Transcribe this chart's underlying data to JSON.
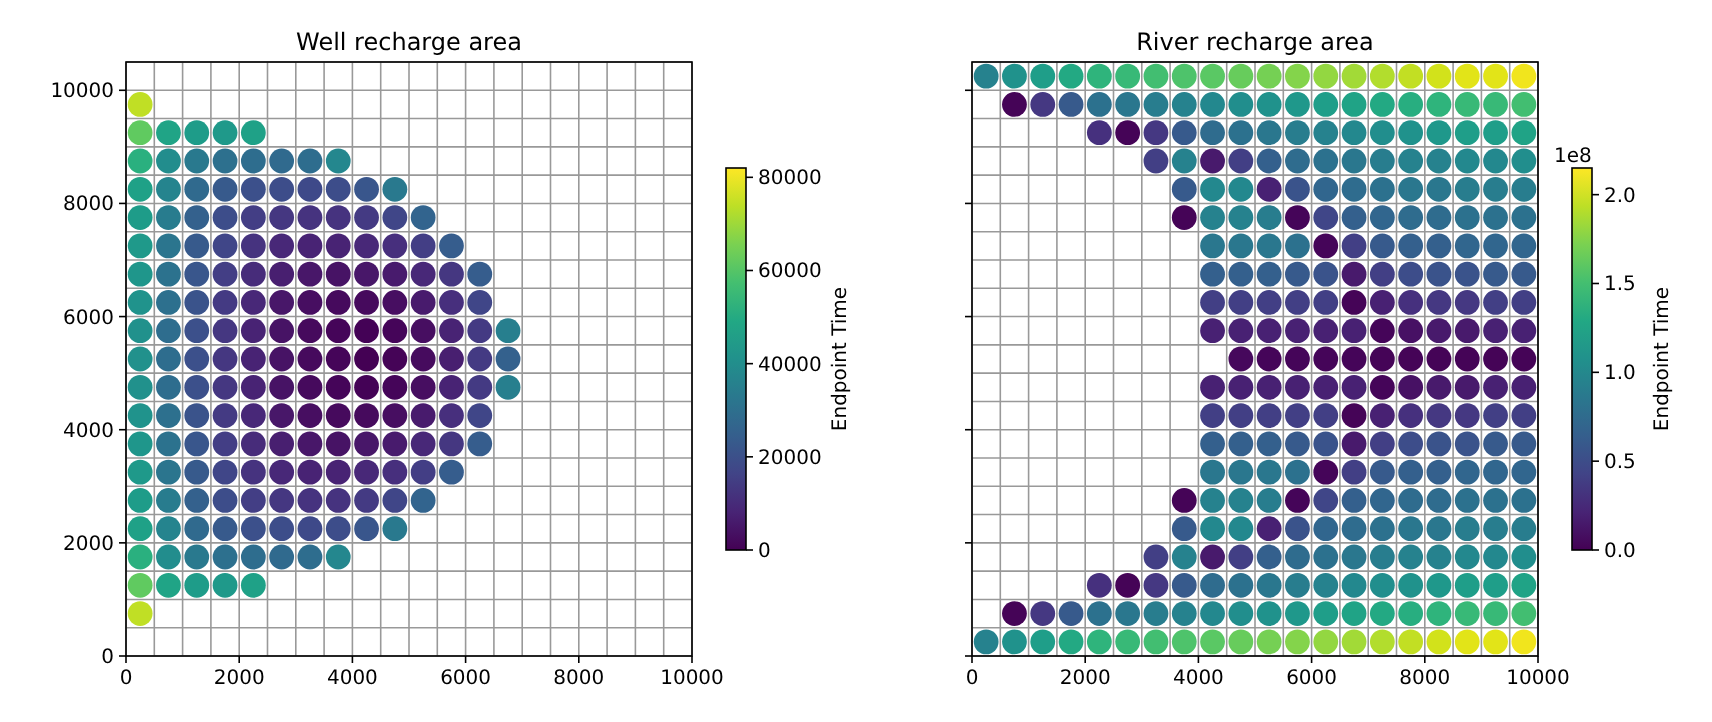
{
  "chart_data": [
    {
      "type": "scatter",
      "title": "Well recharge area",
      "clabel": "Endpoint Time",
      "marker": "circle",
      "grid": true,
      "xlim": [
        0,
        10000
      ],
      "ylim": [
        0,
        10500
      ],
      "xticks": [
        0,
        {
          "value": 500,
          "label": null
        },
        {
          "value": 1000,
          "label": null
        },
        {
          "value": 1500,
          "label": null
        },
        2000,
        {
          "value": 2500,
          "label": null
        },
        {
          "value": 3000,
          "label": null
        },
        {
          "value": 3500,
          "label": null
        },
        4000,
        {
          "value": 4500,
          "label": null
        },
        {
          "value": 5000,
          "label": null
        },
        {
          "value": 5500,
          "label": null
        },
        6000,
        {
          "value": 6500,
          "label": null
        },
        {
          "value": 7000,
          "label": null
        },
        {
          "value": 7500,
          "label": null
        },
        8000,
        {
          "value": 8500,
          "label": null
        },
        {
          "value": 9000,
          "label": null
        },
        {
          "value": 9500,
          "label": null
        },
        10000
      ],
      "yticks": [
        0,
        {
          "value": 500,
          "label": null
        },
        {
          "value": 1000,
          "label": null
        },
        {
          "value": 1500,
          "label": null
        },
        2000,
        {
          "value": 2500,
          "label": null
        },
        {
          "value": 3000,
          "label": null
        },
        {
          "value": 3500,
          "label": null
        },
        4000,
        {
          "value": 4500,
          "label": null
        },
        {
          "value": 5000,
          "label": null
        },
        {
          "value": 5500,
          "label": null
        },
        6000,
        {
          "value": 6500,
          "label": null
        },
        {
          "value": 7000,
          "label": null
        },
        {
          "value": 7500,
          "label": null
        },
        8000,
        {
          "value": 8500,
          "label": null
        },
        {
          "value": 9000,
          "label": null
        },
        {
          "value": 9500,
          "label": null
        },
        10000,
        {
          "value": 10500,
          "label": null
        }
      ],
      "clim": [
        0,
        82000
      ],
      "cticks": [
        0,
        20000,
        40000,
        60000,
        80000
      ],
      "series": [
        {
          "x": [
            250,
            250,
            750,
            1250,
            1750,
            2250,
            250,
            750,
            1250,
            1750,
            2250,
            2750,
            3250,
            3750,
            250,
            750,
            1250,
            1750,
            2250,
            2750,
            3250,
            3750,
            4250,
            4750,
            250,
            750,
            1250,
            1750,
            2250,
            2750,
            3250,
            3750,
            4250,
            4750,
            5250,
            250,
            750,
            1250,
            1750,
            2250,
            2750,
            3250,
            3750,
            4250,
            4750,
            5250,
            5750,
            250,
            750,
            1250,
            1750,
            2250,
            2750,
            3250,
            3750,
            4250,
            4750,
            5250,
            5750,
            6250,
            250,
            750,
            1250,
            1750,
            2250,
            2750,
            3250,
            3750,
            4250,
            4750,
            5250,
            5750,
            6250,
            250,
            750,
            1250,
            1750,
            2250,
            2750,
            3250,
            3750,
            4250,
            4750,
            5250,
            5750,
            6250,
            6750,
            250,
            750,
            1250,
            1750,
            2250,
            2750,
            3250,
            3750,
            4250,
            4750,
            5250,
            5750,
            6250,
            6750,
            250,
            750,
            1250,
            1750,
            2250,
            2750,
            3250,
            3750,
            4250,
            4750,
            5250,
            5750,
            6250,
            6750,
            250,
            750,
            1250,
            1750,
            2250,
            2750,
            3250,
            3750,
            4250,
            4750,
            5250,
            5750,
            6250,
            250,
            750,
            1250,
            1750,
            2250,
            2750,
            3250,
            3750,
            4250,
            4750,
            5250,
            5750,
            6250,
            250,
            750,
            1250,
            1750,
            2250,
            2750,
            3250,
            3750,
            4250,
            4750,
            5250,
            5750,
            250,
            750,
            1250,
            1750,
            2250,
            2750,
            3250,
            3750,
            4250,
            4750,
            5250,
            250,
            750,
            1250,
            1750,
            2250,
            2750,
            3250,
            3750,
            4250,
            4750,
            250,
            750,
            1250,
            1750,
            2250,
            2750,
            3250,
            3750,
            250,
            750,
            1250,
            1750,
            2250,
            250
          ],
          "values": [
            9750,
            9250,
            9250,
            9250,
            9250,
            9250,
            8750,
            8750,
            8750,
            8750,
            8750,
            8750,
            8750,
            8750,
            8250,
            8250,
            8250,
            8250,
            8250,
            8250,
            8250,
            8250,
            8250,
            8250,
            7750,
            7750,
            7750,
            7750,
            7750,
            7750,
            7750,
            7750,
            7750,
            7750,
            7750,
            7250,
            7250,
            7250,
            7250,
            7250,
            7250,
            7250,
            7250,
            7250,
            7250,
            7250,
            7250,
            6750,
            6750,
            6750,
            6750,
            6750,
            6750,
            6750,
            6750,
            6750,
            6750,
            6750,
            6750,
            6750,
            6250,
            6250,
            6250,
            6250,
            6250,
            6250,
            6250,
            6250,
            6250,
            6250,
            6250,
            6250,
            6250,
            5750,
            5750,
            5750,
            5750,
            5750,
            5750,
            5750,
            5750,
            5750,
            5750,
            5750,
            5750,
            5750,
            5750,
            5250,
            5250,
            5250,
            5250,
            5250,
            5250,
            5250,
            5250,
            5250,
            5250,
            5250,
            5250,
            5250,
            5250,
            4750,
            4750,
            4750,
            4750,
            4750,
            4750,
            4750,
            4750,
            4750,
            4750,
            4750,
            4750,
            4750,
            4750,
            4250,
            4250,
            4250,
            4250,
            4250,
            4250,
            4250,
            4250,
            4250,
            4250,
            4250,
            4250,
            4250,
            3750,
            3750,
            3750,
            3750,
            3750,
            3750,
            3750,
            3750,
            3750,
            3750,
            3750,
            3750,
            3750,
            3250,
            3250,
            3250,
            3250,
            3250,
            3250,
            3250,
            3250,
            3250,
            3250,
            3250,
            3250,
            2750,
            2750,
            2750,
            2750,
            2750,
            2750,
            2750,
            2750,
            2750,
            2750,
            2750,
            2250,
            2250,
            2250,
            2250,
            2250,
            2250,
            2250,
            2250,
            2250,
            2250,
            1750,
            1750,
            1750,
            1750,
            1750,
            1750,
            1750,
            1750,
            1250,
            1250,
            1250,
            1250,
            1250,
            750
          ],
          "cvalues": [
            74000,
            62000,
            48000,
            45000,
            44000,
            47000,
            52000,
            40000,
            33000,
            30000,
            29000,
            28000,
            29000,
            38000,
            47000,
            37000,
            28000,
            23000,
            20000,
            19000,
            18000,
            19000,
            22000,
            33000,
            45000,
            34000,
            25000,
            19000,
            15000,
            13000,
            12000,
            12000,
            14000,
            17000,
            26000,
            44000,
            32000,
            23000,
            17000,
            12000,
            9000,
            8000,
            8000,
            9000,
            11000,
            15000,
            24000,
            43000,
            31000,
            22000,
            15000,
            10000,
            7000,
            5000,
            4000,
            5000,
            6000,
            9000,
            13000,
            24000,
            42000,
            30000,
            21000,
            14000,
            9000,
            5000,
            3000,
            2000,
            2000,
            3000,
            6000,
            11000,
            17000,
            41000,
            29000,
            20000,
            13000,
            8000,
            4000,
            2000,
            1000,
            500,
            1000,
            3000,
            8000,
            14000,
            35000,
            41000,
            29000,
            20000,
            13000,
            8000,
            4000,
            2000,
            1000,
            300,
            800,
            2500,
            7000,
            14000,
            25000,
            41000,
            29000,
            20000,
            13000,
            8000,
            4000,
            2000,
            1000,
            500,
            1000,
            3000,
            8000,
            14000,
            35000,
            42000,
            30000,
            21000,
            14000,
            9000,
            5000,
            3000,
            2000,
            2000,
            3000,
            6000,
            11000,
            17000,
            43000,
            31000,
            22000,
            15000,
            10000,
            7000,
            5000,
            4000,
            5000,
            6000,
            9000,
            13000,
            24000,
            44000,
            32000,
            23000,
            17000,
            12000,
            9000,
            8000,
            8000,
            9000,
            11000,
            15000,
            24000,
            45000,
            34000,
            25000,
            19000,
            15000,
            13000,
            12000,
            12000,
            14000,
            17000,
            26000,
            47000,
            37000,
            28000,
            23000,
            20000,
            19000,
            18000,
            19000,
            22000,
            33000,
            52000,
            40000,
            33000,
            30000,
            29000,
            28000,
            29000,
            38000,
            62000,
            48000,
            45000,
            44000,
            47000,
            74000
          ]
        }
      ]
    },
    {
      "type": "scatter",
      "title": "River recharge area",
      "clabel": "Endpoint Time",
      "marker": "circle",
      "grid": true,
      "tick_labels": "x",
      "annotations": [
        "1e8"
      ],
      "xlim": [
        0,
        10000
      ],
      "ylim": [
        0,
        10500
      ],
      "xticks": [
        0,
        {
          "value": 500,
          "label": null
        },
        {
          "value": 1000,
          "label": null
        },
        {
          "value": 1500,
          "label": null
        },
        2000,
        {
          "value": 2500,
          "label": null
        },
        {
          "value": 3000,
          "label": null
        },
        {
          "value": 3500,
          "label": null
        },
        4000,
        {
          "value": 4500,
          "label": null
        },
        {
          "value": 5000,
          "label": null
        },
        {
          "value": 5500,
          "label": null
        },
        6000,
        {
          "value": 6500,
          "label": null
        },
        {
          "value": 7000,
          "label": null
        },
        {
          "value": 7500,
          "label": null
        },
        8000,
        {
          "value": 8500,
          "label": null
        },
        {
          "value": 9000,
          "label": null
        },
        {
          "value": 9500,
          "label": null
        },
        10000
      ],
      "yticks": [
        0,
        {
          "value": 500,
          "label": null
        },
        {
          "value": 1000,
          "label": null
        },
        {
          "value": 1500,
          "label": null
        },
        2000,
        {
          "value": 2500,
          "label": null
        },
        {
          "value": 3000,
          "label": null
        },
        {
          "value": 3500,
          "label": null
        },
        4000,
        {
          "value": 4500,
          "label": null
        },
        {
          "value": 5000,
          "label": null
        },
        {
          "value": 5500,
          "label": null
        },
        6000,
        {
          "value": 6500,
          "label": null
        },
        {
          "value": 7000,
          "label": null
        },
        {
          "value": 7500,
          "label": null
        },
        8000,
        {
          "value": 8500,
          "label": null
        },
        {
          "value": 9000,
          "label": null
        },
        {
          "value": 9500,
          "label": null
        },
        10000,
        {
          "value": 10500,
          "label": null
        }
      ],
      "clim": [
        0,
        2.15
      ],
      "cticks": [
        {
          "value": 0,
          "label": "0.0"
        },
        0.5,
        {
          "value": 1,
          "label": "1.0"
        },
        1.5,
        {
          "value": 2,
          "label": "2.0"
        }
      ],
      "series": [
        {
          "x": [
            250,
            750,
            1250,
            1750,
            2250,
            2750,
            3250,
            3750,
            4250,
            4750,
            5250,
            5750,
            6250,
            6750,
            7250,
            7750,
            8250,
            8750,
            9250,
            9750,
            750,
            1250,
            1750,
            2250,
            2750,
            3250,
            3750,
            4250,
            4750,
            5250,
            5750,
            6250,
            6750,
            7250,
            7750,
            8250,
            8750,
            9250,
            9750,
            2250,
            2750,
            3250,
            3750,
            4250,
            4750,
            5250,
            5750,
            6250,
            6750,
            7250,
            7750,
            8250,
            8750,
            9250,
            9750,
            3250,
            3750,
            4250,
            4750,
            5250,
            5750,
            6250,
            6750,
            7250,
            7750,
            8250,
            8750,
            9250,
            9750,
            3750,
            4250,
            4750,
            5250,
            5750,
            6250,
            6750,
            7250,
            7750,
            8250,
            8750,
            9250,
            9750,
            3750,
            4250,
            4750,
            5250,
            5750,
            6250,
            6750,
            7250,
            7750,
            8250,
            8750,
            9250,
            9750,
            4250,
            4750,
            5250,
            5750,
            6250,
            6750,
            7250,
            7750,
            8250,
            8750,
            9250,
            9750,
            4250,
            4750,
            5250,
            5750,
            6250,
            6750,
            7250,
            7750,
            8250,
            8750,
            9250,
            9750,
            4250,
            4750,
            5250,
            5750,
            6250,
            6750,
            7250,
            7750,
            8250,
            8750,
            9250,
            9750,
            4250,
            4750,
            5250,
            5750,
            6250,
            6750,
            7250,
            7750,
            8250,
            8750,
            9250,
            9750,
            4750,
            5250,
            5750,
            6250,
            6750,
            7250,
            7750,
            8250,
            8750,
            9250,
            9750,
            4250,
            4750,
            5250,
            5750,
            6250,
            6750,
            7250,
            7750,
            8250,
            8750,
            9250,
            9750,
            4250,
            4750,
            5250,
            5750,
            6250,
            6750,
            7250,
            7750,
            8250,
            8750,
            9250,
            9750,
            4250,
            4750,
            5250,
            5750,
            6250,
            6750,
            7250,
            7750,
            8250,
            8750,
            9250,
            9750,
            4250,
            4750,
            5250,
            5750,
            6250,
            6750,
            7250,
            7750,
            8250,
            8750,
            9250,
            9750,
            3750,
            4250,
            4750,
            5250,
            5750,
            6250,
            6750,
            7250,
            7750,
            8250,
            8750,
            9250,
            9750,
            3750,
            4250,
            4750,
            5250,
            5750,
            6250,
            6750,
            7250,
            7750,
            8250,
            8750,
            9250,
            9750,
            3250,
            3750,
            4250,
            4750,
            5250,
            5750,
            6250,
            6750,
            7250,
            7750,
            8250,
            8750,
            9250,
            9750,
            2250,
            2750,
            3250,
            3750,
            4250,
            4750,
            5250,
            5750,
            6250,
            6750,
            7250,
            7750,
            8250,
            8750,
            9250,
            9750,
            750,
            1250,
            1750,
            2250,
            2750,
            3250,
            3750,
            4250,
            4750,
            5250,
            5750,
            6250,
            6750,
            7250,
            7750,
            8250,
            8750,
            9250,
            9750,
            250,
            750,
            1250,
            1750,
            2250,
            2750,
            3250,
            3750,
            4250,
            4750,
            5250,
            5750,
            6250,
            6750,
            7250,
            7750,
            8250,
            8750,
            9250,
            9750
          ],
          "values": [
            10250,
            10250,
            10250,
            10250,
            10250,
            10250,
            10250,
            10250,
            10250,
            10250,
            10250,
            10250,
            10250,
            10250,
            10250,
            10250,
            10250,
            10250,
            10250,
            10250,
            9750,
            9750,
            9750,
            9750,
            9750,
            9750,
            9750,
            9750,
            9750,
            9750,
            9750,
            9750,
            9750,
            9750,
            9750,
            9750,
            9750,
            9750,
            9750,
            9250,
            9250,
            9250,
            9250,
            9250,
            9250,
            9250,
            9250,
            9250,
            9250,
            9250,
            9250,
            9250,
            9250,
            9250,
            9250,
            8750,
            8750,
            8750,
            8750,
            8750,
            8750,
            8750,
            8750,
            8750,
            8750,
            8750,
            8750,
            8750,
            8750,
            8250,
            8250,
            8250,
            8250,
            8250,
            8250,
            8250,
            8250,
            8250,
            8250,
            8250,
            8250,
            8250,
            7750,
            7750,
            7750,
            7750,
            7750,
            7750,
            7750,
            7750,
            7750,
            7750,
            7750,
            7750,
            7750,
            7250,
            7250,
            7250,
            7250,
            7250,
            7250,
            7250,
            7250,
            7250,
            7250,
            7250,
            7250,
            6750,
            6750,
            6750,
            6750,
            6750,
            6750,
            6750,
            6750,
            6750,
            6750,
            6750,
            6750,
            6250,
            6250,
            6250,
            6250,
            6250,
            6250,
            6250,
            6250,
            6250,
            6250,
            6250,
            6250,
            5750,
            5750,
            5750,
            5750,
            5750,
            5750,
            5750,
            5750,
            5750,
            5750,
            5750,
            5750,
            5250,
            5250,
            5250,
            5250,
            5250,
            5250,
            5250,
            5250,
            5250,
            5250,
            5250,
            4750,
            4750,
            4750,
            4750,
            4750,
            4750,
            4750,
            4750,
            4750,
            4750,
            4750,
            4750,
            4250,
            4250,
            4250,
            4250,
            4250,
            4250,
            4250,
            4250,
            4250,
            4250,
            4250,
            4250,
            3750,
            3750,
            3750,
            3750,
            3750,
            3750,
            3750,
            3750,
            3750,
            3750,
            3750,
            3750,
            3250,
            3250,
            3250,
            3250,
            3250,
            3250,
            3250,
            3250,
            3250,
            3250,
            3250,
            3250,
            2750,
            2750,
            2750,
            2750,
            2750,
            2750,
            2750,
            2750,
            2750,
            2750,
            2750,
            2750,
            2750,
            2250,
            2250,
            2250,
            2250,
            2250,
            2250,
            2250,
            2250,
            2250,
            2250,
            2250,
            2250,
            2250,
            1750,
            1750,
            1750,
            1750,
            1750,
            1750,
            1750,
            1750,
            1750,
            1750,
            1750,
            1750,
            1750,
            1750,
            1250,
            1250,
            1250,
            1250,
            1250,
            1250,
            1250,
            1250,
            1250,
            1250,
            1250,
            1250,
            1250,
            1250,
            1250,
            1250,
            750,
            750,
            750,
            750,
            750,
            750,
            750,
            750,
            750,
            750,
            750,
            750,
            750,
            750,
            750,
            750,
            750,
            750,
            750,
            250,
            250,
            250,
            250,
            250,
            250,
            250,
            250,
            250,
            250,
            250,
            250,
            250,
            250,
            250,
            250,
            250,
            250,
            250,
            250
          ],
          "cvalues": [
            0.95,
            1.1,
            1.2,
            1.3,
            1.4,
            1.45,
            1.5,
            1.55,
            1.6,
            1.65,
            1.7,
            1.75,
            1.8,
            1.85,
            1.9,
            1.95,
            2.0,
            2.05,
            2.05,
            2.1,
            0.02,
            0.35,
            0.6,
            0.8,
            0.85,
            0.9,
            0.95,
            1.0,
            1.05,
            1.1,
            1.15,
            1.2,
            1.25,
            1.3,
            1.35,
            1.4,
            1.45,
            1.45,
            1.5,
            0.3,
            0.02,
            0.35,
            0.6,
            0.75,
            0.8,
            0.85,
            0.9,
            0.95,
            1.0,
            1.05,
            1.1,
            1.15,
            1.2,
            1.2,
            1.25,
            0.4,
            0.95,
            0.15,
            0.4,
            0.65,
            0.75,
            0.8,
            0.85,
            0.9,
            0.95,
            0.95,
            1.0,
            1.0,
            1.05,
            0.6,
            1.0,
            1.0,
            0.2,
            0.55,
            0.7,
            0.75,
            0.8,
            0.85,
            0.85,
            0.9,
            0.9,
            0.9,
            0.02,
            0.95,
            0.95,
            0.9,
            0.03,
            0.45,
            0.65,
            0.7,
            0.75,
            0.75,
            0.8,
            0.8,
            0.8,
            0.85,
            0.85,
            0.85,
            0.8,
            0.03,
            0.4,
            0.6,
            0.65,
            0.65,
            0.7,
            0.7,
            0.7,
            0.65,
            0.65,
            0.65,
            0.6,
            0.55,
            0.15,
            0.4,
            0.5,
            0.55,
            0.55,
            0.6,
            0.6,
            0.4,
            0.4,
            0.4,
            0.4,
            0.4,
            0.02,
            0.2,
            0.3,
            0.35,
            0.35,
            0.4,
            0.4,
            0.2,
            0.2,
            0.2,
            0.2,
            0.2,
            0.2,
            0.03,
            0.1,
            0.15,
            0.15,
            0.2,
            0.2,
            0.05,
            0.03,
            0.03,
            0.03,
            0.03,
            0.02,
            0.02,
            0.02,
            0.02,
            0.02,
            0.02,
            0.2,
            0.2,
            0.2,
            0.2,
            0.2,
            0.2,
            0.03,
            0.1,
            0.15,
            0.15,
            0.2,
            0.2,
            0.4,
            0.4,
            0.4,
            0.4,
            0.4,
            0.02,
            0.2,
            0.3,
            0.35,
            0.35,
            0.4,
            0.4,
            0.65,
            0.65,
            0.65,
            0.6,
            0.55,
            0.15,
            0.4,
            0.5,
            0.55,
            0.55,
            0.6,
            0.6,
            0.85,
            0.85,
            0.85,
            0.8,
            0.03,
            0.4,
            0.6,
            0.65,
            0.65,
            0.7,
            0.7,
            0.7,
            0.02,
            0.95,
            0.95,
            0.9,
            0.03,
            0.45,
            0.65,
            0.7,
            0.75,
            0.75,
            0.8,
            0.8,
            0.8,
            0.6,
            1.0,
            1.0,
            0.2,
            0.55,
            0.7,
            0.75,
            0.8,
            0.85,
            0.85,
            0.9,
            0.9,
            0.9,
            0.4,
            0.95,
            0.15,
            0.4,
            0.65,
            0.75,
            0.8,
            0.85,
            0.9,
            0.95,
            0.95,
            1.0,
            1.0,
            1.05,
            0.3,
            0.02,
            0.35,
            0.6,
            0.75,
            0.8,
            0.85,
            0.9,
            0.95,
            1.0,
            1.05,
            1.1,
            1.15,
            1.2,
            1.2,
            1.25,
            0.02,
            0.35,
            0.6,
            0.8,
            0.85,
            0.9,
            0.95,
            1.0,
            1.05,
            1.1,
            1.15,
            1.2,
            1.25,
            1.3,
            1.35,
            1.4,
            1.45,
            1.45,
            1.5,
            0.95,
            1.1,
            1.2,
            1.3,
            1.4,
            1.45,
            1.5,
            1.55,
            1.6,
            1.65,
            1.7,
            1.75,
            1.8,
            1.85,
            1.9,
            1.95,
            2.0,
            2.05,
            2.05,
            2.1
          ]
        }
      ]
    }
  ]
}
